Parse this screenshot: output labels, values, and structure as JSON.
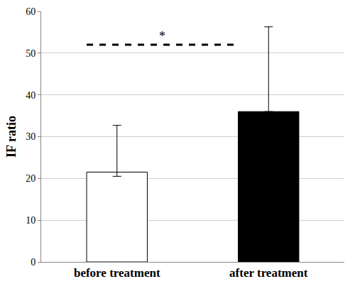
{
  "chart_data": {
    "type": "bar",
    "y_label": "IF ratio",
    "categories": [
      "before treatment",
      "after treatment"
    ],
    "values": [
      21.5,
      36
    ],
    "colors": [
      "#ffffff",
      "#000000"
    ],
    "error_plus": [
      11.2,
      20.3
    ],
    "error_minus": [
      1.0,
      0
    ],
    "ylim": [
      0,
      60
    ],
    "yticks": [
      0,
      10,
      20,
      30,
      40,
      50,
      60
    ],
    "grid": true,
    "annotations": [
      {
        "text": "*",
        "y": 52,
        "from": "before treatment",
        "to": "after treatment",
        "line_style": "dashed"
      }
    ]
  }
}
